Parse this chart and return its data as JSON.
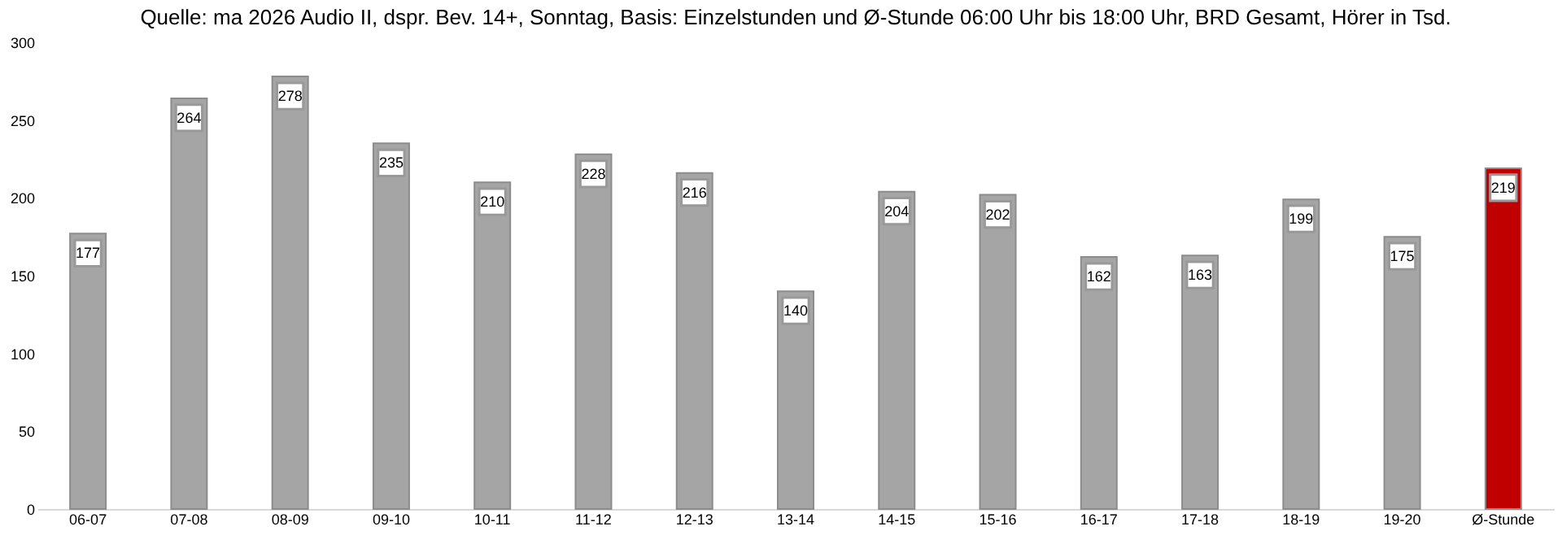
{
  "chart_data": {
    "type": "bar",
    "title": "Quelle: ma 2026 Audio II, dspr. Bev. 14+, Sonntag, Basis: Einzelstunden und Ø-Stunde 06:00 Uhr bis 18:00 Uhr, BRD Gesamt, Hörer in Tsd.",
    "categories": [
      "06-07",
      "07-08",
      "08-09",
      "09-10",
      "10-11",
      "11-12",
      "12-13",
      "13-14",
      "14-15",
      "15-16",
      "16-17",
      "17-18",
      "18-19",
      "19-20",
      "Ø-Stunde"
    ],
    "values": [
      177,
      264,
      278,
      235,
      210,
      228,
      216,
      140,
      204,
      202,
      162,
      163,
      199,
      175,
      219
    ],
    "colors": [
      "#a5a5a5",
      "#a5a5a5",
      "#a5a5a5",
      "#a5a5a5",
      "#a5a5a5",
      "#a5a5a5",
      "#a5a5a5",
      "#a5a5a5",
      "#a5a5a5",
      "#a5a5a5",
      "#a5a5a5",
      "#a5a5a5",
      "#a5a5a5",
      "#a5a5a5",
      "#c00000"
    ],
    "ylim": [
      0,
      300
    ],
    "yticks": [
      0,
      50,
      100,
      150,
      200,
      250,
      300
    ],
    "grid": false,
    "data_labels": true
  }
}
